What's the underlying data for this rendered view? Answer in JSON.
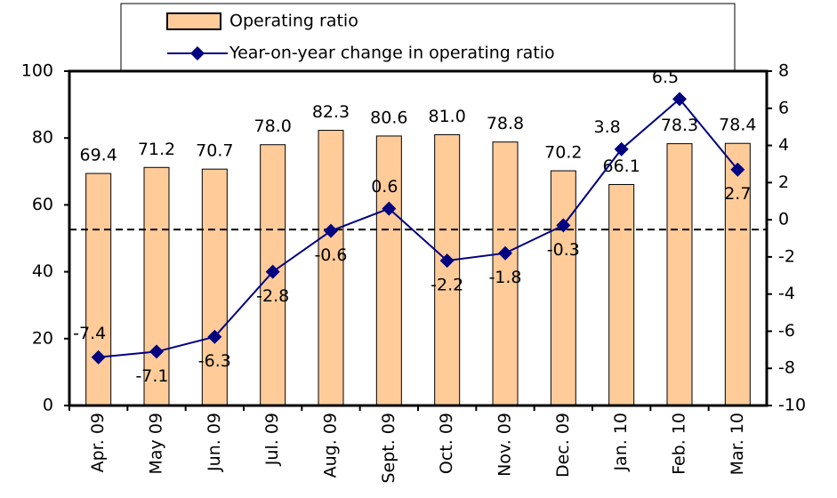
{
  "chart_data": {
    "type": "bar-line",
    "categories": [
      "Apr. 09",
      "May 09",
      "Jun. 09",
      "Jul. 09",
      "Aug. 09",
      "Sept. 09",
      "Oct. 09",
      "Nov. 09",
      "Dec. 09",
      "Jan. 10",
      "Feb. 10",
      "Mar. 10"
    ],
    "series": [
      {
        "name": "Operating ratio",
        "type": "bar",
        "color": "#FFCC99",
        "values": [
          69.4,
          71.2,
          70.7,
          78.0,
          82.3,
          80.6,
          81.0,
          78.8,
          70.2,
          66.1,
          78.3,
          78.4
        ],
        "value_labels": [
          "69.4",
          "71.2",
          "70.7",
          "78.0",
          "82.3",
          "80.6",
          "81.0",
          "78.8",
          "70.2",
          "66.1",
          "78.3",
          "78.4"
        ]
      },
      {
        "name": "Year-on-year change in operating ratio",
        "type": "line",
        "axis": "y2",
        "color": "#000080",
        "values": [
          -7.4,
          -7.1,
          -6.3,
          -2.8,
          -0.6,
          0.6,
          -2.2,
          -1.8,
          -0.3,
          3.8,
          6.5,
          2.7
        ]
      }
    ],
    "ylim": [
      0,
      100
    ],
    "yticks": [
      0,
      20,
      40,
      60,
      80,
      100
    ],
    "y2lim": [
      -10,
      8
    ],
    "y2ticks": [
      -10,
      -8,
      -6,
      -4,
      -2,
      0,
      2,
      4,
      6,
      8
    ],
    "zero_line": true
  }
}
